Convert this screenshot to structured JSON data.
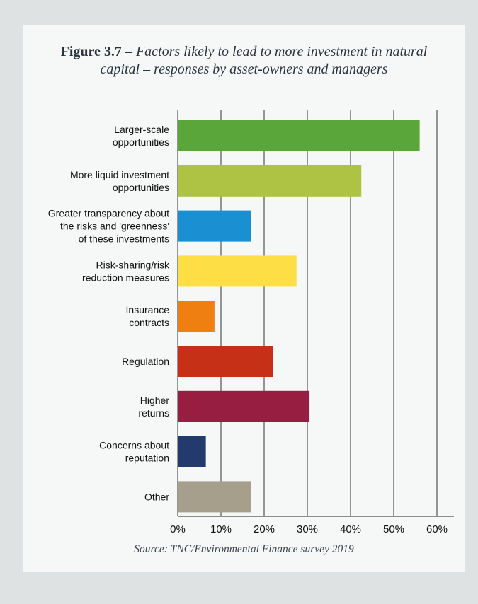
{
  "figure": {
    "label": "Figure 3.7",
    "separator": " – ",
    "subtitle_line1": "Factors likely to lead to more investment in natural",
    "subtitle_line2": "capital – responses by asset-owners and managers",
    "source": "Source: TNC/Environmental Finance survey 2019"
  },
  "chart_data": {
    "type": "bar",
    "orientation": "horizontal",
    "title": "Figure 3.7 – Factors likely to lead to more investment in natural capital – responses by asset-owners and managers",
    "xlabel": "",
    "ylabel": "",
    "xlim": [
      0,
      60
    ],
    "x_ticks": [
      "0%",
      "10%",
      "20%",
      "30%",
      "40%",
      "50%",
      "60%"
    ],
    "grid": "vertical",
    "categories": [
      [
        "Larger-scale",
        "opportunities"
      ],
      [
        "More liquid investment",
        "opportunities"
      ],
      [
        "Greater transparency about",
        "the risks and 'greenness'",
        "of these investments"
      ],
      [
        "Risk-sharing/risk",
        "reduction measures"
      ],
      [
        "Insurance",
        "contracts"
      ],
      [
        "Regulation"
      ],
      [
        "Higher",
        "returns"
      ],
      [
        "Concerns about",
        "reputation"
      ],
      [
        "Other"
      ]
    ],
    "values": [
      56,
      42.5,
      17,
      27.5,
      8.5,
      22,
      30.5,
      6.5,
      17
    ],
    "colors": [
      "#5aa63a",
      "#aec244",
      "#1a90d2",
      "#fddf45",
      "#ee7f10",
      "#c53017",
      "#971e40",
      "#223a6c",
      "#a69f8b"
    ]
  }
}
